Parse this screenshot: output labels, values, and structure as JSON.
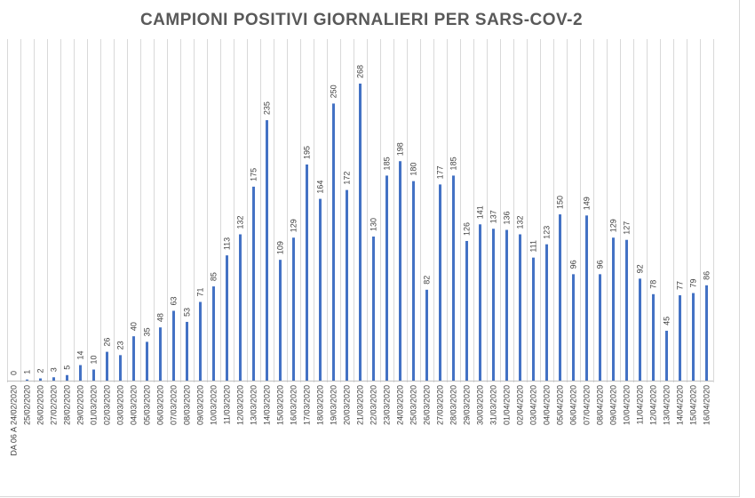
{
  "chart_data": {
    "type": "bar",
    "title": "CAMPIONI POSITIVI GIORNALIERI PER SARS-COV-2",
    "xlabel": "",
    "ylabel": "",
    "ylim": [
      0,
      300
    ],
    "grid": "vertical",
    "legend": "none",
    "bar_color": "#4472c4",
    "grid_color": "#d9d9d9",
    "label_color": "#404040",
    "categories": [
      "DA 06 A 24/02/2020",
      "25/02/2020",
      "26/02/2020",
      "27/02/2020",
      "28/02/2020",
      "29/02/2020",
      "01/03/2020",
      "02/03/2020",
      "03/03/2020",
      "04/03/2020",
      "05/03/2020",
      "06/03/2020",
      "07/03/2020",
      "08/03/2020",
      "09/03/2020",
      "10/03/2020",
      "11/03/2020",
      "12/03/2020",
      "13/03/2020",
      "14/03/2020",
      "15/03/2020",
      "16/03/2020",
      "17/03/2020",
      "18/03/2020",
      "19/03/2020",
      "20/03/2020",
      "21/03/2020",
      "22/03/2020",
      "23/03/2020",
      "24/03/2020",
      "25/03/2020",
      "26/03/2020",
      "27/03/2020",
      "28/03/2020",
      "29/03/2020",
      "30/03/2020",
      "31/03/2020",
      "01/04/2020",
      "02/04/2020",
      "03/04/2020",
      "04/04/2020",
      "05/04/2020",
      "06/04/2020",
      "07/04/2020",
      "08/04/2020",
      "09/04/2020",
      "10/04/2020",
      "11/04/2020",
      "12/04/2020",
      "13/04/2020",
      "14/04/2020",
      "15/04/2020",
      "16/04/2020"
    ],
    "values": [
      0,
      1,
      2,
      3,
      5,
      14,
      10,
      26,
      23,
      40,
      35,
      48,
      63,
      53,
      71,
      85,
      113,
      132,
      175,
      235,
      109,
      129,
      195,
      164,
      250,
      172,
      268,
      130,
      185,
      198,
      180,
      82,
      177,
      185,
      126,
      141,
      137,
      136,
      132,
      111,
      123,
      150,
      96,
      149,
      96,
      129,
      127,
      92,
      78,
      45,
      77,
      79,
      86
    ]
  }
}
